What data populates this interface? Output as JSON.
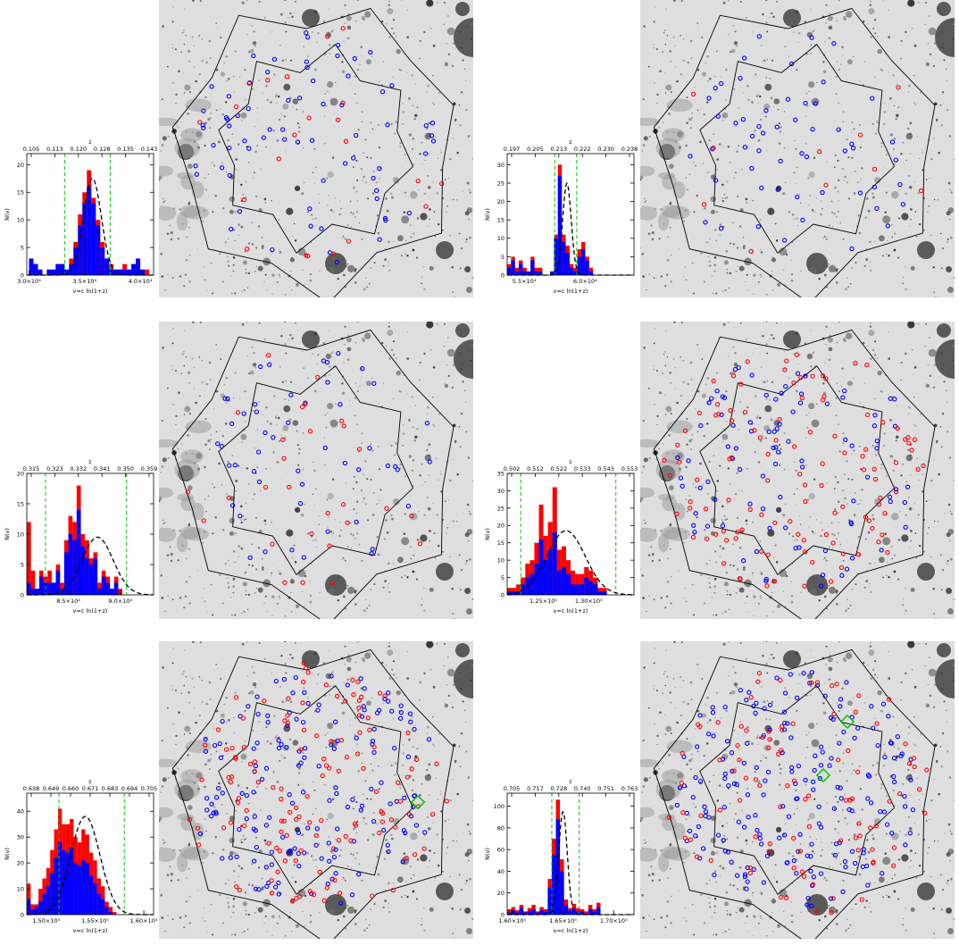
{
  "colors": {
    "red": "#ff0000",
    "blue": "#0000ff",
    "green": "#00c800",
    "black": "#000000"
  },
  "chart_data": [
    {
      "type": "bar",
      "xlabel": "v=c ln(1+z)",
      "ylabel": "N(v)",
      "top_axis_label": "z",
      "xlim": [
        29800,
        41200
      ],
      "ylim": [
        0,
        22
      ],
      "x_ticks": [
        30000,
        35000,
        40000
      ],
      "x_tick_labels": [
        "3.0×10⁴",
        "3.5×10⁴",
        "4.0×10⁴"
      ],
      "y_ticks": [
        0,
        5,
        10,
        15,
        20
      ],
      "y_tick_labels": [
        "0",
        "5",
        "10",
        "15",
        "20"
      ],
      "top_tick_labels": [
        "0.105",
        "0.113",
        "0.120",
        "0.128",
        "0.135",
        "0.143"
      ],
      "green_lines": [
        33200,
        37300
      ],
      "gauss": {
        "mu": 35700,
        "sigma": 800,
        "amp": 17.5
      },
      "bin_start": 30000,
      "bin_width": 400,
      "series": [
        {
          "values": [
            3,
            2,
            1,
            0,
            1,
            1,
            2,
            2,
            1,
            3,
            6,
            11,
            15,
            19,
            14,
            10,
            6,
            3,
            2,
            1,
            1,
            2,
            1,
            2,
            3,
            1,
            1,
            0
          ]
        },
        {
          "values": [
            3,
            2,
            1,
            0,
            1,
            1,
            2,
            2,
            1,
            2,
            5,
            9,
            13,
            16,
            13,
            9,
            5,
            3,
            1,
            1,
            1,
            1,
            1,
            2,
            3,
            1,
            0,
            0
          ]
        }
      ]
    },
    {
      "type": "bar",
      "xlabel": "v=c ln(1+z)",
      "ylabel": "N(v)",
      "top_axis_label": "z",
      "xlim": [
        53600,
        64000
      ],
      "ylim": [
        0,
        33
      ],
      "x_ticks": [
        55000,
        60000
      ],
      "x_tick_labels": [
        "5.5×10⁴",
        "6.0×10⁴"
      ],
      "y_ticks": [
        0,
        5,
        10,
        15,
        20,
        25,
        30
      ],
      "y_tick_labels": [
        "0",
        "5",
        "10",
        "15",
        "20",
        "25",
        "30"
      ],
      "top_tick_labels": [
        "0.197",
        "0.205",
        "0.213",
        "0.222",
        "0.230",
        "0.238"
      ],
      "green_lines": [
        57500,
        59300
      ],
      "gauss": {
        "mu": 58500,
        "sigma": 350,
        "amp": 25
      },
      "bin_start": 53600,
      "bin_width": 320,
      "series": [
        {
          "values": [
            3,
            5,
            2,
            4,
            2,
            1,
            5,
            2,
            2,
            0,
            0,
            1,
            11,
            30,
            11,
            8,
            3,
            2,
            7,
            9,
            5,
            2,
            0,
            0,
            0,
            0,
            0,
            0,
            0,
            0,
            0,
            0
          ]
        },
        {
          "values": [
            2,
            4,
            1,
            3,
            1,
            1,
            4,
            1,
            1,
            0,
            0,
            1,
            10,
            27,
            9,
            6,
            2,
            1,
            5,
            7,
            4,
            1,
            0,
            0,
            0,
            0,
            0,
            0,
            0,
            0,
            0,
            0
          ]
        }
      ]
    },
    {
      "type": "bar",
      "xlabel": "v=c ln(1+z)",
      "ylabel": "N(v)",
      "top_axis_label": "z",
      "xlim": [
        81000,
        93200
      ],
      "ylim": [
        0,
        20
      ],
      "x_ticks": [
        85000,
        90000
      ],
      "x_tick_labels": [
        "8.5×10⁴",
        "9.0×10⁴"
      ],
      "y_ticks": [
        0,
        5,
        10,
        15,
        20
      ],
      "y_tick_labels": [
        "0",
        "5",
        "10",
        "15",
        "20"
      ],
      "top_tick_labels": [
        "0.315",
        "0.323",
        "0.332",
        "0.341",
        "0.350",
        "0.359"
      ],
      "green_lines": [
        82800,
        90600
      ],
      "gauss": {
        "mu": 87800,
        "sigma": 1500,
        "amp": 9.5
      },
      "bin_start": 81000,
      "bin_width": 400,
      "series": [
        {
          "values": [
            12,
            4,
            1,
            4,
            3,
            4,
            2,
            5,
            2,
            9,
            13,
            12,
            18,
            10,
            9,
            6,
            7,
            2,
            4,
            3,
            1,
            3,
            1,
            0,
            0,
            0,
            0,
            0,
            0,
            0
          ]
        },
        {
          "values": [
            2,
            1,
            1,
            3,
            2,
            2,
            2,
            4,
            1,
            7,
            10,
            9,
            14,
            8,
            6,
            5,
            6,
            1,
            3,
            2,
            1,
            2,
            0,
            0,
            0,
            0,
            0,
            0,
            0,
            0
          ]
        }
      ]
    },
    {
      "type": "bar",
      "xlabel": "v=c ln(1+z)",
      "ylabel": "N(v)",
      "top_axis_label": "z",
      "xlim": [
        121000,
        135000
      ],
      "ylim": [
        0,
        35
      ],
      "x_ticks": [
        125000,
        130000
      ],
      "x_tick_labels": [
        "1.25×10⁵",
        "1.30×10⁵"
      ],
      "y_ticks": [
        0,
        5,
        10,
        15,
        20,
        25,
        30,
        35
      ],
      "y_tick_labels": [
        "0",
        "5",
        "10",
        "15",
        "20",
        "25",
        "30",
        "35"
      ],
      "top_tick_labels": [
        "0.502",
        "0.512",
        "0.522",
        "0.533",
        "0.543",
        "0.553"
      ],
      "green_lines": [
        122500,
        133000
      ],
      "gauss": {
        "mu": 127500,
        "sigma": 2100,
        "amp": 18.5
      },
      "bin_start": 121000,
      "bin_width": 500,
      "series": [
        {
          "values": [
            2,
            2,
            3,
            5,
            9,
            10,
            15,
            26,
            17,
            21,
            31,
            13,
            14,
            10,
            7,
            6,
            6,
            8,
            7,
            5,
            2,
            2,
            0,
            0,
            0,
            0,
            0,
            0
          ]
        },
        {
          "values": [
            1,
            1,
            1,
            3,
            5,
            6,
            9,
            16,
            10,
            13,
            18,
            7,
            8,
            6,
            3,
            3,
            3,
            5,
            4,
            3,
            1,
            1,
            0,
            0,
            0,
            0,
            0,
            0
          ]
        }
      ]
    },
    {
      "type": "bar",
      "xlabel": "v=c ln(1+z)",
      "ylabel": "N(v)",
      "top_axis_label": "z",
      "xlim": [
        148000,
        161000
      ],
      "ylim": [
        0,
        47
      ],
      "x_ticks": [
        150000,
        155000,
        160000
      ],
      "x_tick_labels": [
        "1.50×10⁵",
        "1.55×10⁵",
        "1.60×10⁵"
      ],
      "y_ticks": [
        0,
        10,
        20,
        30,
        40
      ],
      "y_tick_labels": [
        "0",
        "10",
        "20",
        "30",
        "40"
      ],
      "top_tick_labels": [
        "0.638",
        "0.649",
        "0.660",
        "0.671",
        "0.683",
        "0.694",
        "0.705"
      ],
      "green_lines": [
        151300,
        158000
      ],
      "gauss": {
        "mu": 154000,
        "sigma": 1500,
        "amp": 38
      },
      "bin_start": 148000,
      "bin_width": 400,
      "series": [
        {
          "values": [
            12,
            4,
            4,
            10,
            14,
            18,
            25,
            33,
            41,
            35,
            35,
            37,
            30,
            28,
            33,
            31,
            24,
            21,
            14,
            11,
            5,
            3,
            1,
            0,
            0,
            0,
            0,
            0,
            0,
            0,
            0,
            0
          ]
        },
        {
          "values": [
            6,
            2,
            3,
            5,
            8,
            11,
            16,
            22,
            28,
            25,
            24,
            26,
            20,
            19,
            21,
            20,
            15,
            12,
            8,
            6,
            3,
            1,
            0,
            0,
            0,
            0,
            0,
            0,
            0,
            0,
            0,
            0
          ]
        }
      ]
    },
    {
      "type": "bar",
      "xlabel": "v=c ln(1+z)",
      "ylabel": "N(v)",
      "top_axis_label": "z",
      "xlim": [
        159500,
        172000
      ],
      "ylim": [
        0,
        112
      ],
      "x_ticks": [
        160000,
        165000,
        170000
      ],
      "x_tick_labels": [
        "1.60×10⁵",
        "1.65×10⁵",
        "1.70×10⁵"
      ],
      "y_ticks": [
        0,
        20,
        40,
        60,
        80,
        100
      ],
      "y_tick_labels": [
        "0",
        "20",
        "40",
        "60",
        "80",
        "100"
      ],
      "top_tick_labels": [
        "0.705",
        "0.717",
        "0.728",
        "0.740",
        "0.751",
        "0.763"
      ],
      "green_lines": [
        163900,
        166600
      ],
      "gauss": {
        "mu": 165000,
        "sigma": 420,
        "amp": 95
      },
      "bin_start": 159500,
      "bin_width": 400,
      "series": [
        {
          "values": [
            5,
            7,
            4,
            9,
            3,
            6,
            9,
            3,
            7,
            5,
            33,
            70,
            106,
            51,
            14,
            6,
            10,
            6,
            5,
            3,
            9,
            5,
            11,
            0,
            0,
            0,
            0,
            0,
            0,
            0,
            0,
            0
          ]
        },
        {
          "values": [
            2,
            4,
            2,
            6,
            2,
            3,
            5,
            2,
            4,
            3,
            25,
            55,
            88,
            40,
            9,
            4,
            6,
            3,
            3,
            1,
            5,
            3,
            7,
            0,
            0,
            0,
            0,
            0,
            0,
            0,
            0,
            0
          ]
        }
      ]
    }
  ],
  "images": [
    {
      "red_markers": 22,
      "blue_markers": 70,
      "green_markers": 0
    },
    {
      "red_markers": 10,
      "blue_markers": 55,
      "green_markers": 0
    },
    {
      "red_markers": 28,
      "blue_markers": 50,
      "green_markers": 0
    },
    {
      "red_markers": 110,
      "blue_markers": 90,
      "green_markers": 0
    },
    {
      "red_markers": 130,
      "blue_markers": 160,
      "green_markers": 1
    },
    {
      "red_markers": 95,
      "blue_markers": 190,
      "green_markers": 2
    }
  ]
}
